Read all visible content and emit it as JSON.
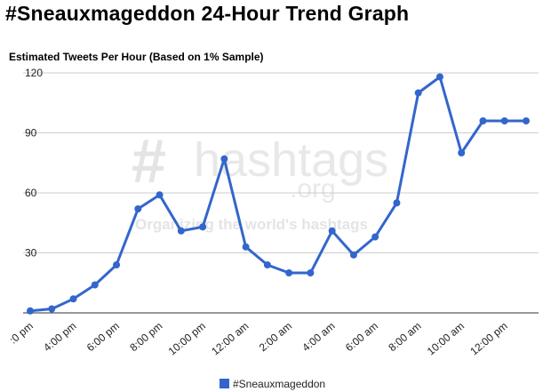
{
  "page": {
    "title": "#Sneauxmageddon 24-Hour Trend Graph"
  },
  "watermark": {
    "hash": "#",
    "name": "hashtags",
    "org": ".org",
    "tagline": "Organizing the world's hashtags"
  },
  "chart_data": {
    "type": "line",
    "title": "Estimated Tweets Per Hour (Based on 1% Sample)",
    "xlabel": "",
    "ylabel": "",
    "ylim": [
      0,
      120
    ],
    "yticks": [
      30,
      60,
      90,
      120
    ],
    "grid": true,
    "legend_position": "bottom",
    "colors": {
      "series": "#3366cc",
      "grid": "#cccccc",
      "axis": "#333333"
    },
    "xtick_labels": [
      ":0 pm",
      "4:00 pm",
      "6:00 pm",
      "8:00 pm",
      "10:00 pm",
      "12:00 am",
      "2:00 am",
      "4:00 am",
      "6:00 am",
      "8:00 am",
      "10:00 am",
      "12:00 pm"
    ],
    "series": [
      {
        "name": "#Sneauxmageddon",
        "values": [
          1,
          2,
          7,
          14,
          24,
          52,
          59,
          41,
          43,
          77,
          33,
          24,
          20,
          20,
          41,
          29,
          38,
          55,
          110,
          118,
          80,
          96,
          96,
          96
        ]
      }
    ]
  }
}
